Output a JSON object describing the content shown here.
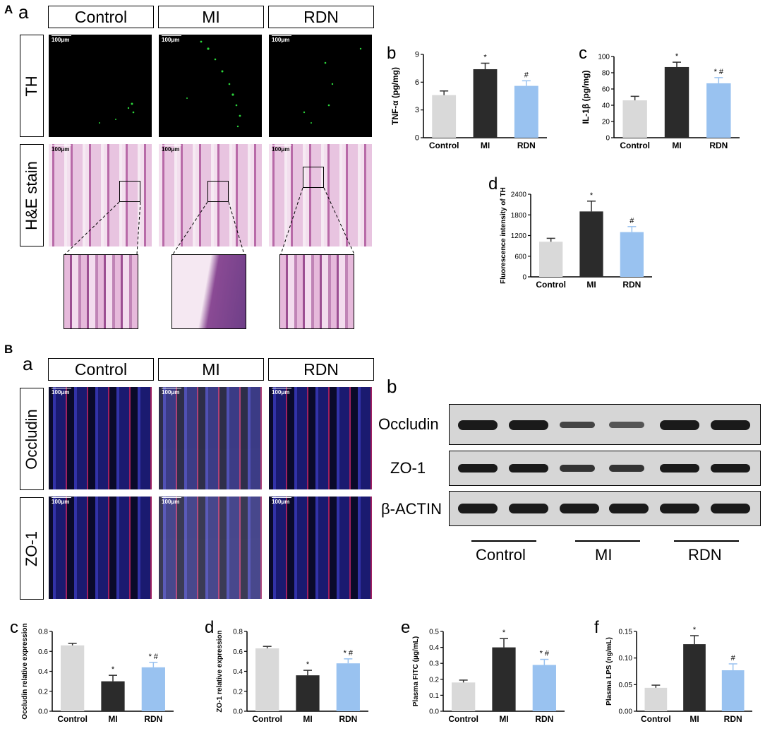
{
  "panelA": {
    "letter": "A",
    "sub_a": "a",
    "headers": [
      "Control",
      "MI",
      "RDN"
    ],
    "rows": [
      "TH",
      "H&E stain"
    ],
    "scale": "100μm"
  },
  "panelB": {
    "letter": "B",
    "sub_a": "a",
    "sub_b": "b",
    "headers": [
      "Control",
      "MI",
      "RDN"
    ],
    "rows": [
      "Occludin",
      "ZO-1"
    ],
    "scale": "100μm",
    "blot_labels": [
      "Occludin",
      "ZO-1",
      "β-ACTIN"
    ],
    "blot_groups": [
      "Control",
      "MI",
      "RDN"
    ]
  },
  "colors": {
    "control": "#d9d9d9",
    "mi": "#2b2b2b",
    "rdn": "#99c2f0"
  },
  "chart_data": [
    {
      "id": "b",
      "type": "bar",
      "letter": "b",
      "ylabel": "TNF-α (pg/mg)",
      "categories": [
        "Control",
        "MI",
        "RDN"
      ],
      "values": [
        4.6,
        7.4,
        5.6
      ],
      "errors": [
        0.45,
        0.65,
        0.55
      ],
      "sig": [
        "",
        "*",
        "#"
      ],
      "ylim": [
        0,
        9
      ],
      "yticks": [
        "0",
        "3",
        "6",
        "9"
      ]
    },
    {
      "id": "c",
      "type": "bar",
      "letter": "c",
      "ylabel": "IL-1β (pg/mg)",
      "categories": [
        "Control",
        "MI",
        "RDN"
      ],
      "values": [
        46,
        87,
        67
      ],
      "errors": [
        5,
        6,
        7
      ],
      "sig": [
        "",
        "*",
        "* #"
      ],
      "ylim": [
        0,
        100
      ],
      "yticks": [
        "0",
        "20",
        "40",
        "60",
        "80",
        "100"
      ]
    },
    {
      "id": "d1",
      "type": "bar",
      "letter": "d",
      "ylabel": "Fluorescence intensity of TH",
      "categories": [
        "Control",
        "MI",
        "RDN"
      ],
      "values": [
        1020,
        1900,
        1300
      ],
      "errors": [
        100,
        300,
        160
      ],
      "sig": [
        "",
        "*",
        "#"
      ],
      "ylim": [
        0,
        2400
      ],
      "yticks": [
        "0",
        "600",
        "1200",
        "1800",
        "2400"
      ]
    },
    {
      "id": "c2",
      "type": "bar",
      "letter": "c",
      "ylabel": "Occludin relative expression",
      "categories": [
        "Control",
        "MI",
        "RDN"
      ],
      "values": [
        0.66,
        0.3,
        0.44
      ],
      "errors": [
        0.02,
        0.06,
        0.05
      ],
      "sig": [
        "",
        "*",
        "* #"
      ],
      "ylim": [
        0,
        0.8
      ],
      "yticks": [
        "0.0",
        "0.2",
        "0.4",
        "0.6",
        "0.8"
      ]
    },
    {
      "id": "d2",
      "type": "bar",
      "letter": "d",
      "ylabel": "ZO-1 relative expression",
      "categories": [
        "Control",
        "MI",
        "RDN"
      ],
      "values": [
        0.63,
        0.36,
        0.48
      ],
      "errors": [
        0.02,
        0.05,
        0.045
      ],
      "sig": [
        "",
        "*",
        "* #"
      ],
      "ylim": [
        0,
        0.8
      ],
      "yticks": [
        "0.0",
        "0.2",
        "0.4",
        "0.6",
        "0.8"
      ]
    },
    {
      "id": "e",
      "type": "bar",
      "letter": "e",
      "ylabel": "Plasma FITC (μg/mL)",
      "categories": [
        "Control",
        "MI",
        "RDN"
      ],
      "values": [
        0.18,
        0.4,
        0.29
      ],
      "errors": [
        0.015,
        0.055,
        0.035
      ],
      "sig": [
        "",
        "*",
        "* #"
      ],
      "ylim": [
        0,
        0.5
      ],
      "yticks": [
        "0.0",
        "0.1",
        "0.2",
        "0.3",
        "0.4",
        "0.5"
      ]
    },
    {
      "id": "f",
      "type": "bar",
      "letter": "f",
      "ylabel": "Plasma LPS (ng/mL)",
      "categories": [
        "Control",
        "MI",
        "RDN"
      ],
      "values": [
        0.044,
        0.126,
        0.077
      ],
      "errors": [
        0.005,
        0.016,
        0.012
      ],
      "sig": [
        "",
        "*",
        "#"
      ],
      "ylim": [
        0,
        0.15
      ],
      "yticks": [
        "0.00",
        "0.05",
        "0.10",
        "0.15"
      ]
    }
  ]
}
